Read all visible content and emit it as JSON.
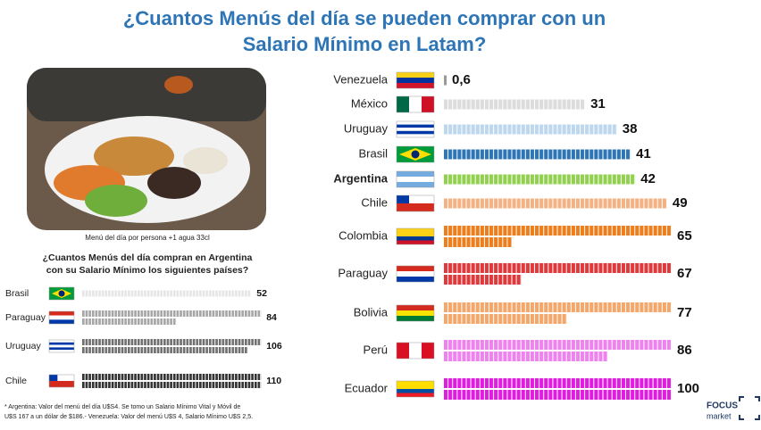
{
  "title": [
    "¿Cuantos Menús del día se pueden comprar con un",
    "Salario Mínimo en Latam?"
  ],
  "caption": "Menú del día por persona +1 agua 33cl",
  "footnote": [
    "* Argentina: Valor del menú del día U$S4. Se tomo un Salario Mínimo Vital y Móvil de",
    "U$S 167 a un dólar de $186.- Venezuela: Valor del menú U$S 4, Salario Mínimo U$S 2,5."
  ],
  "logo": [
    "FOCUS",
    "market"
  ],
  "chart_data": [
    {
      "type": "bar",
      "categories": [
        "Venezuela",
        "México",
        "Uruguay",
        "Brasil",
        "Argentina",
        "Chile",
        "Colombia",
        "Paraguay",
        "Bolivia",
        "Perú",
        "Ecuador"
      ],
      "values": [
        0.6,
        31,
        38,
        41,
        42,
        49,
        65,
        67,
        77,
        86,
        100
      ],
      "value_labels": [
        "0,6",
        "31",
        "38",
        "41",
        "42",
        "49",
        "65",
        "67",
        "77",
        "86",
        "100"
      ],
      "colors": [
        "#9a9a9a",
        "#dcdcdc",
        "#bdd7ee",
        "#2e75b6",
        "#92d050",
        "#f4b183",
        "#ee7d1c",
        "#e0393c",
        "#f4a76b",
        "#ee82ee",
        "#e11ce1"
      ]
    },
    {
      "type": "bar",
      "title": [
        "¿Cuantos Menús del día compran en Argentina",
        "con su Salario Mínimo los siguientes países?"
      ],
      "categories": [
        "Brasil",
        "Paraguay",
        "Uruguay",
        "Chile"
      ],
      "values": [
        52,
        84,
        106,
        110
      ],
      "colors": [
        "#e6e6e6",
        "#a6a6a6",
        "#707070",
        "#333333"
      ]
    }
  ]
}
